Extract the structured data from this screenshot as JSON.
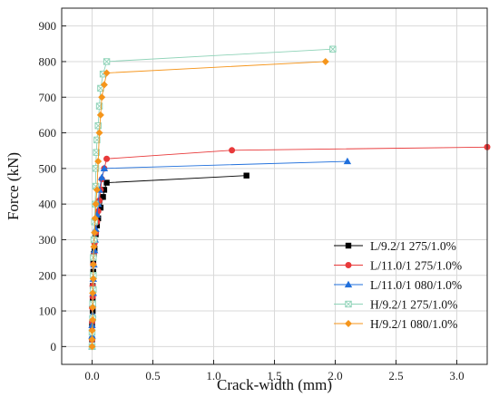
{
  "chart_data": {
    "type": "scatter",
    "title": "",
    "xlabel": "Crack-width (mm)",
    "ylabel": "Force (kN)",
    "xlim": [
      -0.25,
      3.25
    ],
    "ylim": [
      -50,
      950
    ],
    "x_ticks": [
      "0.0",
      "0.5",
      "1.0",
      "1.5",
      "2.0",
      "2.5",
      "3.0"
    ],
    "y_ticks": [
      "0",
      "100",
      "200",
      "300",
      "400",
      "500",
      "600",
      "700",
      "800",
      "900"
    ],
    "grid": true,
    "legend_position": "bottom-right",
    "series": [
      {
        "name": "L/9.2/1 275/1.0%",
        "color": "#000000",
        "marker": "square",
        "x": [
          0.0,
          0.0,
          0.0,
          0.0,
          0.005,
          0.005,
          0.005,
          0.01,
          0.01,
          0.015,
          0.02,
          0.02,
          0.03,
          0.04,
          0.05,
          0.07,
          0.09,
          0.1,
          0.12,
          1.27
        ],
        "y": [
          0,
          20,
          40,
          60,
          100,
          130,
          170,
          210,
          240,
          260,
          275,
          295,
          315,
          340,
          360,
          390,
          420,
          440,
          460,
          480
        ]
      },
      {
        "name": "L/11.0/1 275/1.0%",
        "color": "#e8393a",
        "marker": "circle",
        "x": [
          0.0,
          0.0,
          0.0,
          0.0,
          0.0,
          0.005,
          0.005,
          0.01,
          0.01,
          0.015,
          0.02,
          0.03,
          0.04,
          0.05,
          0.06,
          0.07,
          0.08,
          0.1,
          0.12,
          1.15,
          3.25
        ],
        "y": [
          0,
          20,
          45,
          70,
          110,
          140,
          170,
          200,
          230,
          260,
          290,
          320,
          350,
          380,
          410,
          440,
          470,
          500,
          527,
          551,
          560
        ]
      },
      {
        "name": "L/11.0/1 080/1.0%",
        "color": "#1f6fdc",
        "marker": "triangle",
        "x": [
          0.0,
          0.0,
          0.0,
          0.005,
          0.005,
          0.01,
          0.01,
          0.015,
          0.02,
          0.025,
          0.03,
          0.04,
          0.05,
          0.06,
          0.08,
          0.1,
          2.1
        ],
        "y": [
          0,
          30,
          60,
          90,
          120,
          150,
          190,
          230,
          270,
          300,
          330,
          370,
          400,
          440,
          475,
          500,
          520
        ]
      },
      {
        "name": "H/9.2/1 275/1.0%",
        "color": "#8fd3b8",
        "marker": "square-x",
        "x": [
          0.0,
          0.0,
          0.005,
          0.005,
          0.01,
          0.01,
          0.01,
          0.015,
          0.02,
          0.025,
          0.03,
          0.03,
          0.035,
          0.04,
          0.05,
          0.06,
          0.07,
          0.09,
          0.12,
          1.98
        ],
        "y": [
          0,
          40,
          80,
          120,
          160,
          200,
          250,
          300,
          350,
          400,
          450,
          500,
          545,
          580,
          620,
          675,
          725,
          765,
          800,
          835
        ]
      },
      {
        "name": "H/9.2/1 080/1.0%",
        "color": "#f5951b",
        "marker": "diamond",
        "x": [
          0.0,
          0.0,
          0.0,
          0.005,
          0.005,
          0.005,
          0.01,
          0.01,
          0.015,
          0.02,
          0.025,
          0.03,
          0.04,
          0.05,
          0.06,
          0.07,
          0.08,
          0.1,
          0.12,
          1.92
        ],
        "y": [
          0,
          20,
          45,
          75,
          110,
          150,
          190,
          230,
          280,
          320,
          360,
          400,
          440,
          520,
          600,
          650,
          700,
          735,
          768,
          800
        ]
      }
    ]
  }
}
